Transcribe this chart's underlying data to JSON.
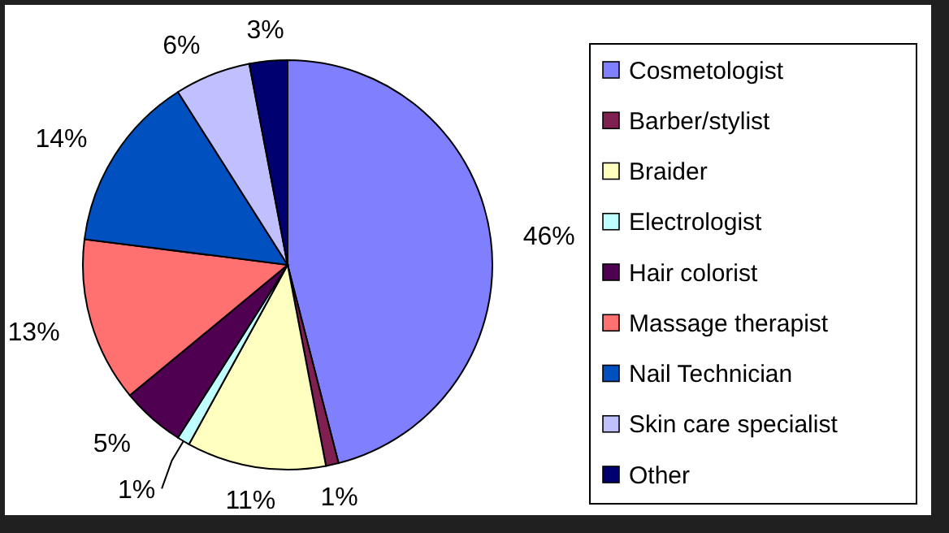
{
  "chart_data": {
    "type": "pie",
    "categories": [
      "Cosmetologist",
      "Barber/stylist",
      "Braider",
      "Electrologist",
      "Hair colorist",
      "Massage therapist",
      "Nail Technician",
      "Skin care specialist",
      "Other"
    ],
    "values": [
      46,
      1,
      11,
      1,
      5,
      13,
      14,
      6,
      3
    ],
    "value_labels": [
      "46%",
      "1%",
      "11%",
      "1%",
      "5%",
      "13%",
      "14%",
      "6%",
      "3%"
    ],
    "colors": [
      "#8080ff",
      "#802050",
      "#ffffc0",
      "#c0ffff",
      "#500050",
      "#ff7070",
      "#0050c0",
      "#c0c0ff",
      "#000070"
    ],
    "legend": "right"
  }
}
